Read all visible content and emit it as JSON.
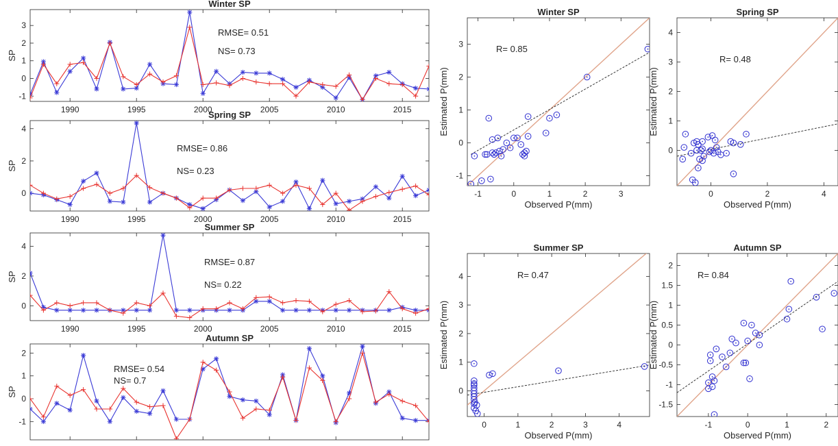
{
  "colors": {
    "observed": "#3a3ad6",
    "simulated": "#e8322e",
    "scatter_marker": "#2f2fd0",
    "one_to_one": "#e0a48a",
    "fit_line": "#222222",
    "axes": "#262626"
  },
  "chart_data": [
    {
      "type": "line",
      "title": "Winter SP",
      "ylabel": "SP",
      "xlabel": "",
      "xlim": [
        1987,
        2017
      ],
      "ylim": [
        -1.3,
        3.9
      ],
      "xticks": [
        1990,
        1995,
        2000,
        2005,
        2010,
        2015
      ],
      "yticks": [
        -1,
        0,
        1,
        2,
        3
      ],
      "annotations": [
        "RMSE= 0.51",
        "NS= 0.73"
      ],
      "x": [
        1987,
        1988,
        1989,
        1990,
        1991,
        1992,
        1993,
        1994,
        1995,
        1996,
        1997,
        1998,
        1999,
        2000,
        2001,
        2002,
        2003,
        2004,
        2005,
        2006,
        2007,
        2008,
        2009,
        2010,
        2011,
        2012,
        2013,
        2014,
        2015,
        2016,
        2017
      ],
      "series": [
        {
          "marker": "star",
          "values": [
            -0.9,
            0.95,
            -0.8,
            0.4,
            1.15,
            -0.6,
            2.05,
            -0.6,
            -0.55,
            0.8,
            -0.3,
            -0.35,
            3.75,
            -0.85,
            0.4,
            -0.3,
            0.35,
            0.3,
            0.3,
            -0.05,
            -0.5,
            -0.1,
            -0.5,
            -1.1,
            0.05,
            -1.2,
            0.15,
            0.35,
            -0.3,
            -0.55,
            -0.6
          ]
        },
        {
          "marker": "plus",
          "values": [
            -1.1,
            0.8,
            -0.3,
            0.8,
            0.9,
            0.0,
            2.0,
            0.1,
            -0.35,
            0.25,
            -0.2,
            0.15,
            2.9,
            -0.35,
            -0.25,
            -0.4,
            0.0,
            -0.2,
            -0.3,
            -0.3,
            -1.0,
            -0.2,
            -0.35,
            -0.45,
            0.2,
            -1.2,
            0.0,
            -0.3,
            -0.35,
            -1.0,
            0.7
          ]
        }
      ]
    },
    {
      "type": "line",
      "title": "Spring SP",
      "ylabel": "SP",
      "xlabel": "",
      "xlim": [
        1987,
        2017
      ],
      "ylim": [
        -1.1,
        4.5
      ],
      "xticks": [
        1990,
        1995,
        2000,
        2005,
        2010,
        2015
      ],
      "yticks": [
        0,
        2,
        4
      ],
      "annotations": [
        "RMSE= 0.86",
        "NS= 0.23"
      ],
      "x": [
        1987,
        1988,
        1989,
        1990,
        1991,
        1992,
        1993,
        1994,
        1995,
        1996,
        1997,
        1998,
        1999,
        2000,
        2001,
        2002,
        2003,
        2004,
        2005,
        2006,
        2007,
        2008,
        2009,
        2010,
        2011,
        2012,
        2013,
        2014,
        2015,
        2016,
        2017
      ],
      "series": [
        {
          "marker": "star",
          "values": [
            0.0,
            -0.1,
            -0.4,
            -0.7,
            0.75,
            1.25,
            -0.5,
            -0.55,
            4.35,
            -0.55,
            0.0,
            -0.3,
            -0.7,
            -0.95,
            -0.4,
            0.2,
            -0.45,
            0.1,
            -0.85,
            -0.5,
            0.7,
            -0.95,
            0.8,
            -0.65,
            -0.5,
            -0.35,
            0.4,
            -0.3,
            1.05,
            -0.15,
            0.2
          ]
        },
        {
          "marker": "plus",
          "values": [
            0.5,
            0.0,
            -0.35,
            -0.2,
            0.3,
            0.55,
            0.0,
            0.3,
            1.1,
            0.35,
            0.0,
            -0.3,
            -0.9,
            -0.3,
            -0.3,
            0.2,
            0.3,
            0.3,
            0.5,
            0.0,
            0.5,
            0.3,
            -0.7,
            0.0,
            -1.05,
            -0.5,
            -0.2,
            0.05,
            0.25,
            0.45,
            -0.1
          ]
        }
      ]
    },
    {
      "type": "line",
      "title": "Summer SP",
      "ylabel": "SP",
      "xlabel": "",
      "xlim": [
        1987,
        2017
      ],
      "ylim": [
        -1.0,
        4.9
      ],
      "xticks": [
        1990,
        1995,
        2000,
        2005,
        2010,
        2015
      ],
      "yticks": [
        0,
        2,
        4
      ],
      "annotations": [
        "RMSE= 0.87",
        "NS= 0.22"
      ],
      "x": [
        1987,
        1988,
        1989,
        1990,
        1991,
        1992,
        1993,
        1994,
        1995,
        1996,
        1997,
        1998,
        1999,
        2000,
        2001,
        2002,
        2003,
        2004,
        2005,
        2006,
        2007,
        2008,
        2009,
        2010,
        2011,
        2012,
        2013,
        2014,
        2015,
        2016,
        2017
      ],
      "series": [
        {
          "marker": "star",
          "values": [
            2.2,
            -0.1,
            -0.3,
            -0.3,
            -0.3,
            -0.3,
            -0.3,
            -0.3,
            -0.3,
            -0.3,
            4.75,
            -0.3,
            -0.3,
            -0.3,
            -0.3,
            -0.3,
            -0.3,
            0.3,
            0.3,
            -0.3,
            -0.3,
            -0.3,
            -0.3,
            -0.3,
            -0.3,
            -0.3,
            -0.3,
            -0.3,
            -0.1,
            -0.3,
            -0.3
          ]
        },
        {
          "marker": "plus",
          "values": [
            0.7,
            -0.3,
            0.2,
            0.0,
            0.2,
            0.2,
            -0.3,
            -0.5,
            0.2,
            0.0,
            0.85,
            -0.7,
            -0.8,
            -0.2,
            -0.2,
            0.2,
            -0.2,
            0.55,
            0.6,
            0.2,
            0.35,
            0.3,
            -0.4,
            0.1,
            0.35,
            -0.4,
            -0.35,
            0.95,
            -0.2,
            -0.5,
            -0.2
          ]
        }
      ]
    },
    {
      "type": "line",
      "title": "Autumn SP",
      "ylabel": "SP",
      "xlabel": "",
      "xlim": [
        1987,
        2017
      ],
      "ylim": [
        -1.8,
        2.4
      ],
      "xticks": [
        1990,
        1995,
        2000,
        2005,
        2010,
        2015
      ],
      "yticks": [
        -1,
        0,
        1,
        2
      ],
      "annotations": [
        "RMSE= 0.54",
        "NS= 0.7"
      ],
      "x": [
        1987,
        1988,
        1989,
        1990,
        1991,
        1992,
        1993,
        1994,
        1995,
        1996,
        1997,
        1998,
        1999,
        2000,
        2001,
        2002,
        2003,
        2004,
        2005,
        2006,
        2007,
        2008,
        2009,
        2010,
        2011,
        2012,
        2013,
        2014,
        2015,
        2016,
        2017
      ],
      "series": [
        {
          "marker": "star",
          "values": [
            -0.45,
            -1.0,
            -0.2,
            -0.5,
            1.9,
            -0.1,
            -1.0,
            0.05,
            -0.55,
            -0.65,
            0.35,
            -0.9,
            -0.9,
            1.3,
            1.75,
            0.1,
            -0.05,
            -0.1,
            -0.7,
            1.05,
            -0.95,
            2.2,
            1.0,
            -1.05,
            0.25,
            2.3,
            -0.2,
            0.3,
            -0.85,
            -0.95,
            -0.95
          ]
        },
        {
          "marker": "plus",
          "values": [
            0.0,
            -0.8,
            0.55,
            0.15,
            0.4,
            -0.45,
            -0.45,
            0.45,
            -0.15,
            -0.35,
            -0.3,
            -1.75,
            -0.9,
            1.6,
            1.25,
            0.3,
            -0.85,
            -0.45,
            -0.5,
            0.95,
            -0.95,
            1.35,
            0.8,
            -1.0,
            0.0,
            2.0,
            -0.15,
            0.2,
            -0.1,
            -0.3,
            -1.0
          ]
        }
      ]
    },
    {
      "type": "scatter",
      "title": "Winter SP",
      "xlabel": "Observed P(mm)",
      "ylabel": "Estimated P(mm)",
      "xlim": [
        -1.3,
        3.8
      ],
      "ylim": [
        -1.3,
        3.8
      ],
      "xticks": [
        -1,
        0,
        1,
        2,
        3
      ],
      "yticks": [
        -1,
        0,
        1,
        2,
        3
      ],
      "annotation": "R= 0.85",
      "fit_line": [
        [
          -1.2,
          -0.35
        ],
        [
          3.8,
          2.75
        ]
      ],
      "one_to_one": [
        [
          -1.3,
          -1.3
        ],
        [
          3.8,
          3.8
        ]
      ],
      "points": [
        [
          -1.2,
          -1.25
        ],
        [
          -1.1,
          -0.4
        ],
        [
          -0.9,
          -1.15
        ],
        [
          -0.8,
          -0.35
        ],
        [
          -0.75,
          -0.35
        ],
        [
          -0.7,
          0.75
        ],
        [
          -0.65,
          -1.1
        ],
        [
          -0.6,
          -0.3
        ],
        [
          -0.6,
          0.1
        ],
        [
          -0.55,
          -0.35
        ],
        [
          -0.5,
          -0.3
        ],
        [
          -0.45,
          0.15
        ],
        [
          -0.4,
          -0.25
        ],
        [
          -0.35,
          -0.4
        ],
        [
          -0.3,
          -0.2
        ],
        [
          -0.2,
          0.0
        ],
        [
          -0.1,
          -0.15
        ],
        [
          0.0,
          0.15
        ],
        [
          0.1,
          0.15
        ],
        [
          0.2,
          -0.05
        ],
        [
          0.25,
          -0.35
        ],
        [
          0.3,
          -0.3
        ],
        [
          0.3,
          -0.4
        ],
        [
          0.35,
          -0.25
        ],
        [
          0.4,
          0.8
        ],
        [
          0.4,
          0.2
        ],
        [
          0.9,
          0.3
        ],
        [
          1.0,
          0.75
        ],
        [
          1.2,
          0.85
        ],
        [
          2.05,
          2.0
        ],
        [
          3.75,
          2.85
        ]
      ]
    },
    {
      "type": "scatter",
      "title": "Spring SP",
      "xlabel": "Observed P(mm)",
      "ylabel": "Estimated P(mm)",
      "xlim": [
        -1.2,
        4.5
      ],
      "ylim": [
        -1.2,
        4.5
      ],
      "xticks": [
        0,
        2,
        4
      ],
      "yticks": [
        0,
        1,
        2,
        3,
        4
      ],
      "annotation": "R= 0.48",
      "fit_line": [
        [
          -1.2,
          -0.2
        ],
        [
          4.5,
          0.9
        ]
      ],
      "one_to_one": [
        [
          -1.2,
          -1.2
        ],
        [
          4.5,
          4.5
        ]
      ],
      "points": [
        [
          -1.0,
          -0.3
        ],
        [
          -0.95,
          0.1
        ],
        [
          -0.9,
          0.55
        ],
        [
          -0.7,
          -0.1
        ],
        [
          -0.65,
          -1.0
        ],
        [
          -0.6,
          0.25
        ],
        [
          -0.55,
          -1.1
        ],
        [
          -0.5,
          0.0
        ],
        [
          -0.5,
          0.3
        ],
        [
          -0.45,
          0.2
        ],
        [
          -0.45,
          -0.6
        ],
        [
          -0.4,
          -0.3
        ],
        [
          -0.35,
          0.0
        ],
        [
          -0.3,
          0.3
        ],
        [
          -0.3,
          0.05
        ],
        [
          -0.3,
          -0.35
        ],
        [
          -0.25,
          -0.2
        ],
        [
          -0.1,
          0.45
        ],
        [
          -0.05,
          -0.05
        ],
        [
          0.0,
          0.0
        ],
        [
          0.05,
          0.5
        ],
        [
          0.1,
          -0.1
        ],
        [
          0.15,
          0.35
        ],
        [
          0.2,
          0.1
        ],
        [
          0.25,
          -0.05
        ],
        [
          0.35,
          -0.15
        ],
        [
          0.55,
          -0.1
        ],
        [
          0.7,
          0.3
        ],
        [
          0.8,
          0.25
        ],
        [
          0.8,
          -0.8
        ],
        [
          1.05,
          0.2
        ],
        [
          1.25,
          0.55
        ]
      ]
    },
    {
      "type": "scatter",
      "title": "Summer SP",
      "xlabel": "Observed P(mm)",
      "ylabel": "Estimated P(mm)",
      "xlim": [
        -0.5,
        4.9
      ],
      "ylim": [
        -0.9,
        4.8
      ],
      "xticks": [
        0,
        1,
        2,
        3,
        4
      ],
      "yticks": [
        0,
        1,
        2,
        3,
        4
      ],
      "annotation": "R= 0.47",
      "fit_line": [
        [
          -0.5,
          -0.15
        ],
        [
          4.9,
          0.9
        ]
      ],
      "one_to_one": [
        [
          -0.5,
          -0.5
        ],
        [
          4.9,
          4.9
        ]
      ],
      "points": [
        [
          -0.3,
          0.95
        ],
        [
          -0.3,
          0.35
        ],
        [
          -0.3,
          0.25
        ],
        [
          -0.3,
          0.2
        ],
        [
          -0.3,
          0.1
        ],
        [
          -0.3,
          0.0
        ],
        [
          -0.3,
          -0.1
        ],
        [
          -0.3,
          -0.2
        ],
        [
          -0.3,
          -0.3
        ],
        [
          -0.3,
          -0.45
        ],
        [
          -0.3,
          -0.6
        ],
        [
          -0.25,
          -0.7
        ],
        [
          -0.2,
          -0.8
        ],
        [
          -0.28,
          -0.4
        ],
        [
          -0.22,
          -0.5
        ],
        [
          0.15,
          0.55
        ],
        [
          0.25,
          0.6
        ],
        [
          2.2,
          0.7
        ],
        [
          4.75,
          0.85
        ]
      ]
    },
    {
      "type": "scatter",
      "title": "Autumn SP",
      "xlabel": "Observed P(mm)",
      "ylabel": "Estimated P(mm)",
      "xlim": [
        -1.8,
        2.3
      ],
      "ylim": [
        -1.8,
        2.3
      ],
      "xticks": [
        -1,
        0,
        1,
        2
      ],
      "yticks": [
        -1.5,
        -1,
        -0.5,
        0,
        0.5,
        1,
        1.5,
        2
      ],
      "annotation": "R= 0.84",
      "fit_line": [
        [
          -1.8,
          -1.2
        ],
        [
          2.3,
          1.6
        ]
      ],
      "one_to_one": [
        [
          -1.8,
          -1.8
        ],
        [
          2.3,
          2.3
        ]
      ],
      "points": [
        [
          -1.0,
          -0.95
        ],
        [
          -1.0,
          -1.1
        ],
        [
          -0.95,
          -0.4
        ],
        [
          -0.95,
          -0.25
        ],
        [
          -0.9,
          -0.8
        ],
        [
          -0.9,
          -1.05
        ],
        [
          -0.85,
          -0.9
        ],
        [
          -0.85,
          -1.75
        ],
        [
          -0.8,
          -0.1
        ],
        [
          -0.65,
          -0.3
        ],
        [
          -0.55,
          -0.55
        ],
        [
          -0.45,
          -0.2
        ],
        [
          -0.4,
          0.15
        ],
        [
          -0.3,
          0.05
        ],
        [
          -0.1,
          -0.45
        ],
        [
          -0.1,
          0.55
        ],
        [
          -0.05,
          -0.45
        ],
        [
          0.0,
          0.1
        ],
        [
          0.05,
          -0.85
        ],
        [
          0.1,
          0.5
        ],
        [
          0.2,
          0.3
        ],
        [
          0.3,
          0.25
        ],
        [
          0.3,
          0.0
        ],
        [
          1.0,
          0.65
        ],
        [
          1.05,
          0.9
        ],
        [
          1.1,
          1.6
        ],
        [
          1.75,
          1.2
        ],
        [
          1.9,
          0.4
        ],
        [
          2.2,
          1.3
        ]
      ]
    }
  ]
}
